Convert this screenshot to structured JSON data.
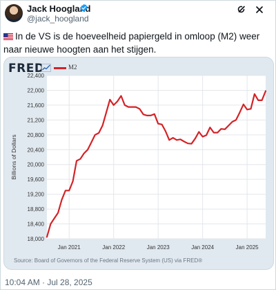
{
  "author": {
    "name": "Jack Hoogland",
    "handle": "@jack_hoogland"
  },
  "tweet": {
    "text": "In de VS is de hoeveelheid papiergeld in omloop (M2) weer naar nieuwe hoogten aan het stijgen.",
    "timestamp": "10:04 AM · Jul 28, 2025"
  },
  "card": {
    "logo": "FRED",
    "legend_label": "M2",
    "source": "Source: Board of Governors of the Federal Reserve System (US) via FRED®"
  },
  "colors": {
    "series": "#d42226",
    "plot_bg": "#ffffff",
    "card_bg": "#e1e9f0",
    "verified": "#1d9bf0"
  },
  "icons": [
    "verified-badge-icon",
    "grok-icon",
    "close-icon",
    "us-flag-icon",
    "fred-spark-icon"
  ],
  "chart_data": {
    "type": "line",
    "title": "",
    "xlabel": "",
    "ylabel": "Billions of Dollars",
    "ylim": [
      18000,
      22400
    ],
    "yticks": [
      18000,
      18400,
      18800,
      19200,
      19600,
      20000,
      20400,
      20800,
      21200,
      21600,
      22000,
      22400
    ],
    "ytick_labels": [
      "18,000",
      "18,400",
      "18,800",
      "19,200",
      "19,600",
      "20,000",
      "20,400",
      "20,800",
      "21,200",
      "21,600",
      "22,000",
      "22,400"
    ],
    "xlim": [
      "2020-07",
      "2025-06"
    ],
    "xticks": [
      "2021-01",
      "2022-01",
      "2023-01",
      "2024-01",
      "2025-01"
    ],
    "xtick_labels": [
      "Jan 2021",
      "Jan 2022",
      "Jan 2023",
      "Jan 2024",
      "Jan 2025"
    ],
    "grid": true,
    "series": [
      {
        "name": "M2",
        "x": [
          "2020-07",
          "2020-08",
          "2020-09",
          "2020-10",
          "2020-11",
          "2020-12",
          "2021-01",
          "2021-02",
          "2021-03",
          "2021-04",
          "2021-05",
          "2021-06",
          "2021-07",
          "2021-08",
          "2021-09",
          "2021-10",
          "2021-11",
          "2021-12",
          "2022-01",
          "2022-02",
          "2022-03",
          "2022-04",
          "2022-05",
          "2022-06",
          "2022-07",
          "2022-08",
          "2022-09",
          "2022-10",
          "2022-11",
          "2022-12",
          "2023-01",
          "2023-02",
          "2023-03",
          "2023-04",
          "2023-05",
          "2023-06",
          "2023-07",
          "2023-08",
          "2023-09",
          "2023-10",
          "2023-11",
          "2023-12",
          "2024-01",
          "2024-02",
          "2024-03",
          "2024-04",
          "2024-05",
          "2024-06",
          "2024-07",
          "2024-08",
          "2024-09",
          "2024-10",
          "2024-11",
          "2024-12",
          "2025-01",
          "2025-02",
          "2025-03",
          "2025-04",
          "2025-05",
          "2025-06"
        ],
        "values": [
          18050,
          18400,
          18550,
          18700,
          19050,
          19300,
          19300,
          19550,
          20100,
          20150,
          20300,
          20400,
          20600,
          20800,
          20850,
          21050,
          21400,
          21750,
          21600,
          21700,
          21850,
          21600,
          21550,
          21550,
          21550,
          21500,
          21350,
          21320,
          21320,
          21360,
          21100,
          21080,
          20900,
          20660,
          20720,
          20660,
          20680,
          20620,
          20570,
          20560,
          20700,
          20880,
          20750,
          20790,
          21000,
          20860,
          20860,
          20960,
          20950,
          21050,
          21150,
          21200,
          21400,
          21620,
          21480,
          21500,
          21900,
          21730,
          21730,
          21980
        ]
      }
    ]
  }
}
